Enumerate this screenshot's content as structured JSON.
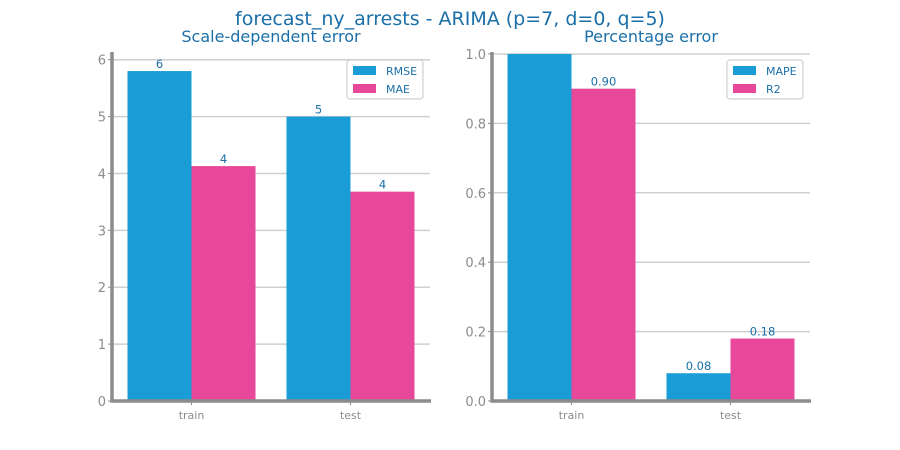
{
  "figure_title": "forecast_ny_arrests - ARIMA (p=7, d=0, q=5)",
  "colors": {
    "series_1": "#1a9dd6",
    "series_2": "#e8489a",
    "text": "#1a6fa8",
    "axis": "#8c8c8c"
  },
  "chart_data": [
    {
      "type": "bar",
      "title": "Scale-dependent error",
      "categories": [
        "train",
        "test"
      ],
      "series": [
        {
          "name": "RMSE",
          "values": [
            5.8,
            5.0
          ],
          "labels": [
            "6",
            "5"
          ]
        },
        {
          "name": "MAE",
          "values": [
            4.13,
            3.68
          ],
          "labels": [
            "4",
            "4"
          ]
        }
      ],
      "ylim": [
        0,
        6.1
      ],
      "yticks": [
        0,
        1,
        2,
        3,
        4,
        5,
        6
      ],
      "ytick_labels": [
        "0",
        "1",
        "2",
        "3",
        "4",
        "5",
        "6"
      ],
      "grid": true,
      "legend": "top-right"
    },
    {
      "type": "bar",
      "title": "Percentage error",
      "categories": [
        "train",
        "test"
      ],
      "series": [
        {
          "name": "MAPE",
          "values": [
            1.0,
            0.08
          ],
          "labels": [
            "",
            "0.08"
          ]
        },
        {
          "name": "R2",
          "values": [
            0.9,
            0.18
          ],
          "labels": [
            "0.90",
            "0.18"
          ]
        }
      ],
      "ylim": [
        0,
        1.0
      ],
      "yticks": [
        0,
        0.2,
        0.4,
        0.6,
        0.8,
        1.0
      ],
      "ytick_labels": [
        "0.0",
        "0.2",
        "0.4",
        "0.6",
        "0.8",
        "1.0"
      ],
      "grid": true,
      "legend": "top-right"
    }
  ]
}
